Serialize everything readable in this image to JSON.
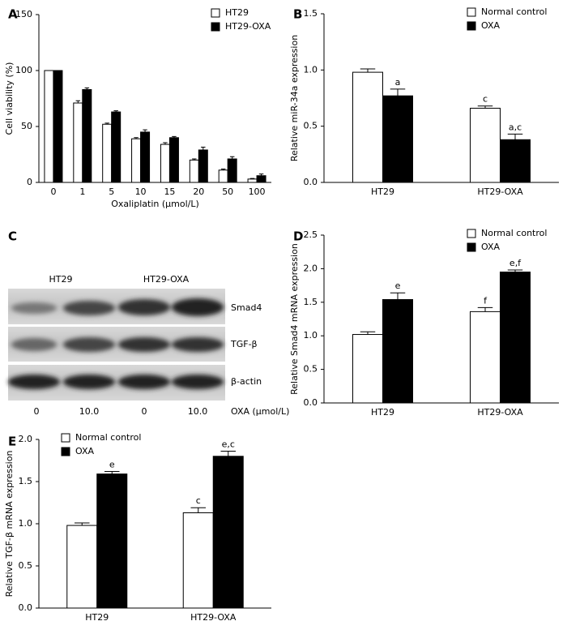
{
  "chart_data": [
    {
      "type": "bar",
      "panel": "A",
      "ylabel": "Cell viability (%)",
      "xlabel": "Oxaliplatin (μmol/L)",
      "categories": [
        "0",
        "1",
        "5",
        "10",
        "15",
        "20",
        "50",
        "100"
      ],
      "series": [
        {
          "name": "HT29",
          "color": "#ffffff",
          "values": [
            100,
            71,
            52,
            39,
            34,
            20,
            11,
            3
          ],
          "errors": [
            0,
            2,
            1,
            1,
            1.5,
            1,
            1,
            0.5
          ]
        },
        {
          "name": "HT29-OXA",
          "color": "#000000",
          "values": [
            100,
            83,
            63,
            45,
            40,
            29,
            21,
            6
          ],
          "errors": [
            0,
            1.5,
            1,
            2,
            1,
            2.5,
            2,
            1.5
          ]
        }
      ],
      "ylim": [
        0,
        150
      ],
      "yticks": [
        0,
        50,
        100,
        150
      ],
      "legend": "upper right"
    },
    {
      "type": "bar",
      "panel": "B",
      "ylabel": "Relative miR-34a expression",
      "categories": [
        "HT29",
        "HT29-OXA"
      ],
      "series": [
        {
          "name": "Normal control",
          "color": "#ffffff",
          "values": [
            0.98,
            0.66
          ],
          "errors": [
            0.03,
            0.02
          ],
          "annotations": [
            null,
            "c"
          ]
        },
        {
          "name": "OXA",
          "color": "#000000",
          "values": [
            0.77,
            0.38
          ],
          "errors": [
            0.06,
            0.05
          ],
          "annotations": [
            "a",
            "a,c"
          ]
        }
      ],
      "ylim": [
        0,
        1.5
      ],
      "yticks": [
        {
          "value": 0,
          "label": "0.0"
        },
        {
          "value": 0.5,
          "label": "0.5"
        },
        {
          "value": 1,
          "label": "1.0"
        },
        {
          "value": 1.5,
          "label": "1.5"
        }
      ],
      "legend": "upper right"
    },
    {
      "type": "bar",
      "panel": "D",
      "ylabel": "Relative Smad4 mRNA expression",
      "categories": [
        "HT29",
        "HT29-OXA"
      ],
      "series": [
        {
          "name": "Normal control",
          "color": "#ffffff",
          "values": [
            1.02,
            1.36
          ],
          "errors": [
            0.04,
            0.06
          ],
          "annotations": [
            null,
            "f"
          ]
        },
        {
          "name": "OXA",
          "color": "#000000",
          "values": [
            1.54,
            1.95
          ],
          "errors": [
            0.1,
            0.03
          ],
          "annotations": [
            "e",
            "e,f"
          ]
        }
      ],
      "ylim": [
        0,
        2.5
      ],
      "yticks": [
        {
          "value": 0,
          "label": "0.0"
        },
        {
          "value": 0.5,
          "label": "0.5"
        },
        {
          "value": 1,
          "label": "1.0"
        },
        {
          "value": 1.5,
          "label": "1.5"
        },
        {
          "value": 2,
          "label": "2.0"
        },
        {
          "value": 2.5,
          "label": "2.5"
        }
      ],
      "legend": "upper right"
    },
    {
      "type": "bar",
      "panel": "E",
      "ylabel": "Relative TGF-β mRNA expression",
      "categories": [
        "HT29",
        "HT29-OXA"
      ],
      "series": [
        {
          "name": "Normal control",
          "color": "#ffffff",
          "values": [
            0.98,
            1.13
          ],
          "errors": [
            0.03,
            0.06
          ],
          "annotations": [
            null,
            "c"
          ]
        },
        {
          "name": "OXA",
          "color": "#000000",
          "values": [
            1.59,
            1.8
          ],
          "errors": [
            0.03,
            0.06
          ],
          "annotations": [
            "e",
            "e,c"
          ]
        }
      ],
      "ylim": [
        0,
        2
      ],
      "yticks": [
        {
          "value": 0,
          "label": "0.0"
        },
        {
          "value": 0.5,
          "label": "0.5"
        },
        {
          "value": 1,
          "label": "1.0"
        },
        {
          "value": 1.5,
          "label": "1.5"
        },
        {
          "value": 2,
          "label": "2.0"
        }
      ],
      "legend": "upper left"
    }
  ],
  "blot": {
    "panel": "C",
    "groups": [
      "HT29",
      "HT29-OXA"
    ],
    "rows": [
      "Smad4",
      "TGF-β",
      "β-actin"
    ],
    "doses": [
      "0",
      "10.0",
      "0",
      "10.0"
    ],
    "dose_label": "OXA (μmol/L)"
  }
}
